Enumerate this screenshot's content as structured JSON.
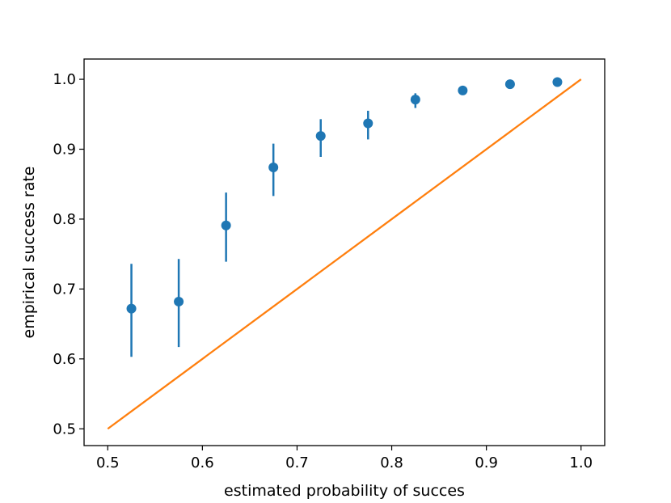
{
  "chart_data": {
    "type": "scatter",
    "xlabel": "estimated probability of succes",
    "ylabel": "empirical success rate",
    "xlim": [
      0.475,
      1.025
    ],
    "ylim": [
      0.476,
      1.029
    ],
    "xticks": [
      "0.5",
      "0.6",
      "0.7",
      "0.8",
      "0.9",
      "1.0"
    ],
    "yticks": [
      "0.5",
      "0.6",
      "0.7",
      "0.8",
      "0.9",
      "1.0"
    ],
    "grid": false,
    "series": [
      {
        "kind": "errorbar",
        "color": "#1f77b4",
        "x": [
          0.525,
          0.575,
          0.625,
          0.675,
          0.725,
          0.775,
          0.825,
          0.875,
          0.925,
          0.975
        ],
        "y": [
          0.672,
          0.682,
          0.791,
          0.874,
          0.919,
          0.937,
          0.971,
          0.984,
          0.993,
          0.996
        ],
        "ylow": [
          0.603,
          0.617,
          0.739,
          0.833,
          0.889,
          0.914,
          0.959,
          0.98,
          0.991,
          0.995
        ],
        "yhigh": [
          0.736,
          0.743,
          0.838,
          0.908,
          0.943,
          0.955,
          0.98,
          0.988,
          0.995,
          0.997
        ]
      },
      {
        "kind": "line",
        "color": "#ff7f0e",
        "x": [
          0.5,
          1.0
        ],
        "y": [
          0.5,
          1.0
        ]
      }
    ]
  }
}
